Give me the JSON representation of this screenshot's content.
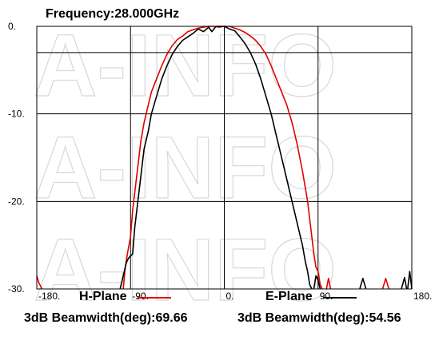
{
  "watermark": "A-INFO",
  "chart_data": {
    "type": "line",
    "title": "Frequency:28.000GHz",
    "xlabel": "",
    "ylabel": "",
    "xlim": [
      -180,
      180
    ],
    "ylim": [
      -30,
      0
    ],
    "x_ticks": [
      -180,
      -90,
      0,
      90,
      180
    ],
    "x_tick_labels": [
      "-180.",
      "-90.",
      "0.",
      "90.",
      "180."
    ],
    "y_ticks": [
      0,
      -10,
      -20,
      -30
    ],
    "y_tick_labels": [
      "0.",
      "-10.",
      "-20.",
      "-30."
    ],
    "grid": true,
    "reference_line_y": -3,
    "legend_position": "bottom",
    "series": [
      {
        "name": "H-Plane",
        "color": "#e00000",
        "beamwidth_label": "3dB Beamwidth(deg):69.66",
        "segments": [
          [
            [
              -180,
              -28.5
            ],
            [
              -178,
              -29.3
            ],
            [
              -175,
              -30
            ]
          ],
          [
            [
              -97,
              -30
            ],
            [
              -95,
              -27.5
            ],
            [
              -93,
              -26
            ],
            [
              -90,
              -24
            ],
            [
              -88,
              -21
            ],
            [
              -85,
              -18
            ],
            [
              -82,
              -15
            ],
            [
              -80,
              -13
            ],
            [
              -77,
              -11
            ],
            [
              -73,
              -9
            ],
            [
              -70,
              -7.5
            ],
            [
              -65,
              -6
            ],
            [
              -60,
              -4.5
            ],
            [
              -55,
              -3.2
            ],
            [
              -50,
              -2.2
            ],
            [
              -45,
              -1.5
            ],
            [
              -40,
              -1.1
            ],
            [
              -35,
              -0.6
            ],
            [
              -30,
              -0.4
            ],
            [
              -25,
              -0.2
            ],
            [
              -20,
              -0.1
            ],
            [
              -15,
              0
            ],
            [
              -10,
              0
            ],
            [
              -5,
              -0.1
            ],
            [
              0,
              0
            ],
            [
              5,
              0
            ],
            [
              10,
              -0.2
            ],
            [
              15,
              -0.4
            ],
            [
              20,
              -0.7
            ],
            [
              25,
              -1.1
            ],
            [
              30,
              -1.6
            ],
            [
              35,
              -2.3
            ],
            [
              40,
              -3.2
            ],
            [
              45,
              -4.5
            ],
            [
              50,
              -6
            ],
            [
              55,
              -7.5
            ],
            [
              60,
              -9
            ],
            [
              65,
              -11
            ],
            [
              70,
              -13.5
            ],
            [
              75,
              -16.5
            ],
            [
              80,
              -20
            ],
            [
              83,
              -23
            ],
            [
              86,
              -26
            ],
            [
              88,
              -27.5
            ],
            [
              90,
              -28
            ],
            [
              92,
              -29.5
            ],
            [
              94,
              -30
            ]
          ],
          [
            [
              98,
              -30
            ],
            [
              100,
              -28.8
            ],
            [
              102,
              -30
            ]
          ],
          [
            [
              152,
              -30
            ],
            [
              155,
              -28.8
            ],
            [
              158,
              -30
            ]
          ]
        ]
      },
      {
        "name": "E-Plane",
        "color": "#000000",
        "beamwidth_label": "3dB Beamwidth(deg):54.56",
        "segments": [
          [
            [
              -100,
              -30
            ],
            [
              -97,
              -28.5
            ],
            [
              -94,
              -27
            ],
            [
              -92,
              -26.5
            ],
            [
              -88,
              -26
            ],
            [
              -86,
              -23
            ],
            [
              -83,
              -20
            ],
            [
              -80,
              -17
            ],
            [
              -77,
              -14
            ],
            [
              -73,
              -12
            ],
            [
              -70,
              -10
            ],
            [
              -65,
              -8
            ],
            [
              -60,
              -6
            ],
            [
              -55,
              -4.5
            ],
            [
              -50,
              -3.2
            ],
            [
              -45,
              -2.3
            ],
            [
              -40,
              -1.6
            ],
            [
              -35,
              -1.2
            ],
            [
              -30,
              -0.8
            ],
            [
              -25,
              -0.3
            ],
            [
              -20,
              -0.6
            ],
            [
              -15,
              -0.1
            ],
            [
              -12,
              -0.6
            ],
            [
              -8,
              0
            ],
            [
              -5,
              0
            ],
            [
              0,
              0
            ],
            [
              5,
              -0.3
            ],
            [
              10,
              -0.5
            ],
            [
              15,
              -1.2
            ],
            [
              20,
              -2
            ],
            [
              25,
              -3
            ],
            [
              30,
              -4.3
            ],
            [
              35,
              -6
            ],
            [
              40,
              -8
            ],
            [
              45,
              -10
            ],
            [
              50,
              -12.5
            ],
            [
              55,
              -15
            ],
            [
              60,
              -17.5
            ],
            [
              65,
              -20
            ],
            [
              70,
              -22.5
            ],
            [
              75,
              -25
            ],
            [
              78,
              -27
            ],
            [
              80,
              -28
            ],
            [
              82,
              -29.5
            ],
            [
              84,
              -30
            ]
          ],
          [
            [
              86,
              -30
            ],
            [
              88,
              -28.5
            ],
            [
              90,
              -29
            ],
            [
              92,
              -30
            ]
          ],
          [
            [
              130,
              -30
            ],
            [
              133,
              -28.8
            ],
            [
              136,
              -30
            ]
          ],
          [
            [
              170,
              -30
            ],
            [
              173,
              -28.7
            ],
            [
              175,
              -30
            ]
          ],
          [
            [
              176,
              -30
            ],
            [
              178,
              -28
            ],
            [
              180,
              -30
            ]
          ]
        ]
      }
    ]
  }
}
